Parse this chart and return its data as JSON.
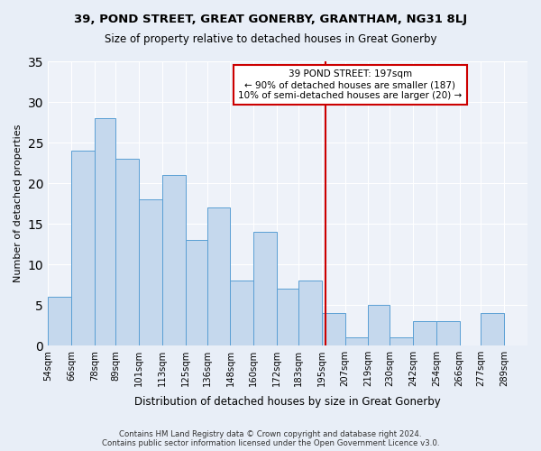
{
  "title": "39, POND STREET, GREAT GONERBY, GRANTHAM, NG31 8LJ",
  "subtitle": "Size of property relative to detached houses in Great Gonerby",
  "xlabel": "Distribution of detached houses by size in Great Gonerby",
  "ylabel": "Number of detached properties",
  "bar_labels": [
    "54sqm",
    "66sqm",
    "78sqm",
    "89sqm",
    "101sqm",
    "113sqm",
    "125sqm",
    "136sqm",
    "148sqm",
    "160sqm",
    "172sqm",
    "183sqm",
    "195sqm",
    "207sqm",
    "219sqm",
    "230sqm",
    "242sqm",
    "254sqm",
    "266sqm",
    "277sqm",
    "289sqm"
  ],
  "bar_heights": [
    6,
    24,
    28,
    23,
    18,
    21,
    13,
    17,
    8,
    14,
    7,
    8,
    4,
    1,
    5,
    1,
    3,
    3,
    0,
    4,
    0
  ],
  "bin_edges": [
    54,
    66,
    78,
    89,
    101,
    113,
    125,
    136,
    148,
    160,
    172,
    183,
    195,
    207,
    219,
    230,
    242,
    254,
    266,
    277,
    289,
    301
  ],
  "bar_color": "#c5d8ed",
  "bar_edgecolor": "#5a9fd4",
  "vline_x": 197,
  "vline_color": "#cc0000",
  "annotation_title": "39 POND STREET: 197sqm",
  "annotation_line1": "← 90% of detached houses are smaller (187)",
  "annotation_line2": "10% of semi-detached houses are larger (20) →",
  "annotation_box_color": "#ffffff",
  "annotation_box_edgecolor": "#cc0000",
  "ylim": [
    0,
    35
  ],
  "yticks": [
    0,
    5,
    10,
    15,
    20,
    25,
    30,
    35
  ],
  "footnote1": "Contains HM Land Registry data © Crown copyright and database right 2024.",
  "footnote2": "Contains public sector information licensed under the Open Government Licence v3.0.",
  "bg_color": "#e8eef7",
  "plot_bg_color": "#eef2f9"
}
